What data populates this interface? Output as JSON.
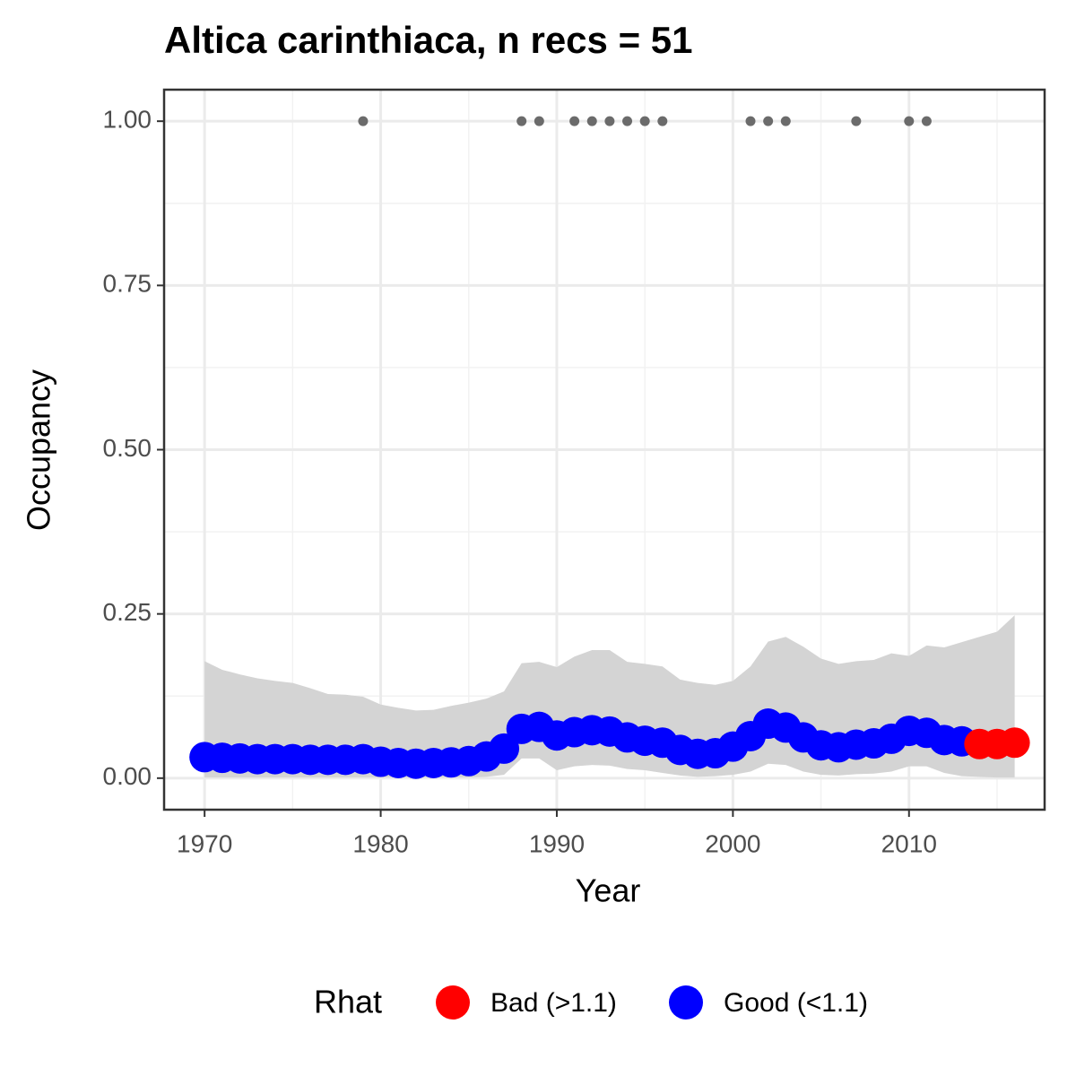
{
  "chart_data": {
    "type": "scatter",
    "title": "Altica carinthiaca, n recs = 51",
    "x_label": "Year",
    "y_label": "Occupancy",
    "xlim": [
      1967.7,
      2017.7
    ],
    "ylim": [
      -0.048,
      1.048
    ],
    "xticks": [
      1970,
      1980,
      1990,
      2000,
      2010
    ],
    "x_minor_grid": [
      1975,
      1985,
      1995,
      2005,
      2015
    ],
    "yticks": [
      {
        "value": 0,
        "label": "0.00"
      },
      {
        "value": 0.25,
        "label": "0.25"
      },
      {
        "value": 0.5,
        "label": "0.50"
      },
      {
        "value": 0.75,
        "label": "0.75"
      },
      {
        "value": 1,
        "label": "1.00"
      }
    ],
    "y_minor_grid": [
      0.125,
      0.375,
      0.625,
      0.875
    ],
    "grid": true,
    "ribbon": {
      "color": "#d4d4d4",
      "x": [
        1970,
        1971,
        1972,
        1973,
        1974,
        1975,
        1976,
        1977,
        1978,
        1979,
        1980,
        1981,
        1982,
        1983,
        1984,
        1985,
        1986,
        1987,
        1988,
        1989,
        1990,
        1991,
        1992,
        1993,
        1994,
        1995,
        1996,
        1997,
        1998,
        1999,
        2000,
        2001,
        2002,
        2003,
        2004,
        2005,
        2006,
        2007,
        2008,
        2009,
        2010,
        2011,
        2012,
        2013,
        2014,
        2015,
        2016
      ],
      "upper": [
        0.178,
        0.165,
        0.158,
        0.152,
        0.148,
        0.145,
        0.137,
        0.128,
        0.127,
        0.124,
        0.112,
        0.107,
        0.103,
        0.104,
        0.11,
        0.115,
        0.121,
        0.132,
        0.175,
        0.177,
        0.169,
        0.185,
        0.195,
        0.195,
        0.177,
        0.174,
        0.17,
        0.15,
        0.145,
        0.142,
        0.148,
        0.17,
        0.208,
        0.215,
        0.2,
        0.182,
        0.174,
        0.178,
        0.18,
        0.19,
        0.186,
        0.202,
        0.199,
        0.207,
        0.215,
        0.223,
        0.248
      ],
      "lower": [
        0.001,
        0.001,
        0.001,
        0.001,
        0.001,
        0.001,
        0.001,
        0.001,
        0.001,
        0.001,
        0.001,
        0.001,
        0.001,
        0.001,
        0.001,
        0.001,
        0.002,
        0.005,
        0.03,
        0.03,
        0.012,
        0.018,
        0.02,
        0.019,
        0.014,
        0.012,
        0.008,
        0.004,
        0.002,
        0.003,
        0.005,
        0.01,
        0.022,
        0.02,
        0.01,
        0.005,
        0.004,
        0.006,
        0.007,
        0.01,
        0.018,
        0.018,
        0.008,
        0.003,
        0.002,
        0.001,
        0.001
      ]
    },
    "records": {
      "color": "#6b6b6b",
      "x": [
        1979,
        1988,
        1989,
        1991,
        1992,
        1993,
        1994,
        1995,
        1996,
        2001,
        2002,
        2003,
        2007,
        2010,
        2011
      ],
      "values": [
        1,
        1,
        1,
        1,
        1,
        1,
        1,
        1,
        1,
        1,
        1,
        1,
        1,
        1,
        1
      ]
    },
    "legend_title": "Rhat",
    "legend_position": "bottom",
    "series": [
      {
        "name": "Bad (>1.1)",
        "color": "#ff0000",
        "x": [
          2014,
          2015,
          2016
        ],
        "values": [
          0.052,
          0.052,
          0.054
        ]
      },
      {
        "name": "Good (<1.1)",
        "color": "#0000ff",
        "x": [
          1970,
          1971,
          1972,
          1973,
          1974,
          1975,
          1976,
          1977,
          1978,
          1979,
          1980,
          1981,
          1982,
          1983,
          1984,
          1985,
          1986,
          1987,
          1988,
          1989,
          1990,
          1991,
          1992,
          1993,
          1994,
          1995,
          1996,
          1997,
          1998,
          1999,
          2000,
          2001,
          2002,
          2003,
          2004,
          2005,
          2006,
          2007,
          2008,
          2009,
          2010,
          2011,
          2012,
          2013
        ],
        "values": [
          0.032,
          0.031,
          0.03,
          0.029,
          0.029,
          0.029,
          0.028,
          0.028,
          0.028,
          0.029,
          0.025,
          0.023,
          0.022,
          0.023,
          0.024,
          0.026,
          0.033,
          0.045,
          0.075,
          0.078,
          0.065,
          0.07,
          0.073,
          0.071,
          0.062,
          0.057,
          0.054,
          0.043,
          0.037,
          0.038,
          0.048,
          0.064,
          0.083,
          0.077,
          0.062,
          0.05,
          0.047,
          0.051,
          0.053,
          0.06,
          0.072,
          0.069,
          0.058,
          0.056
        ]
      }
    ]
  }
}
